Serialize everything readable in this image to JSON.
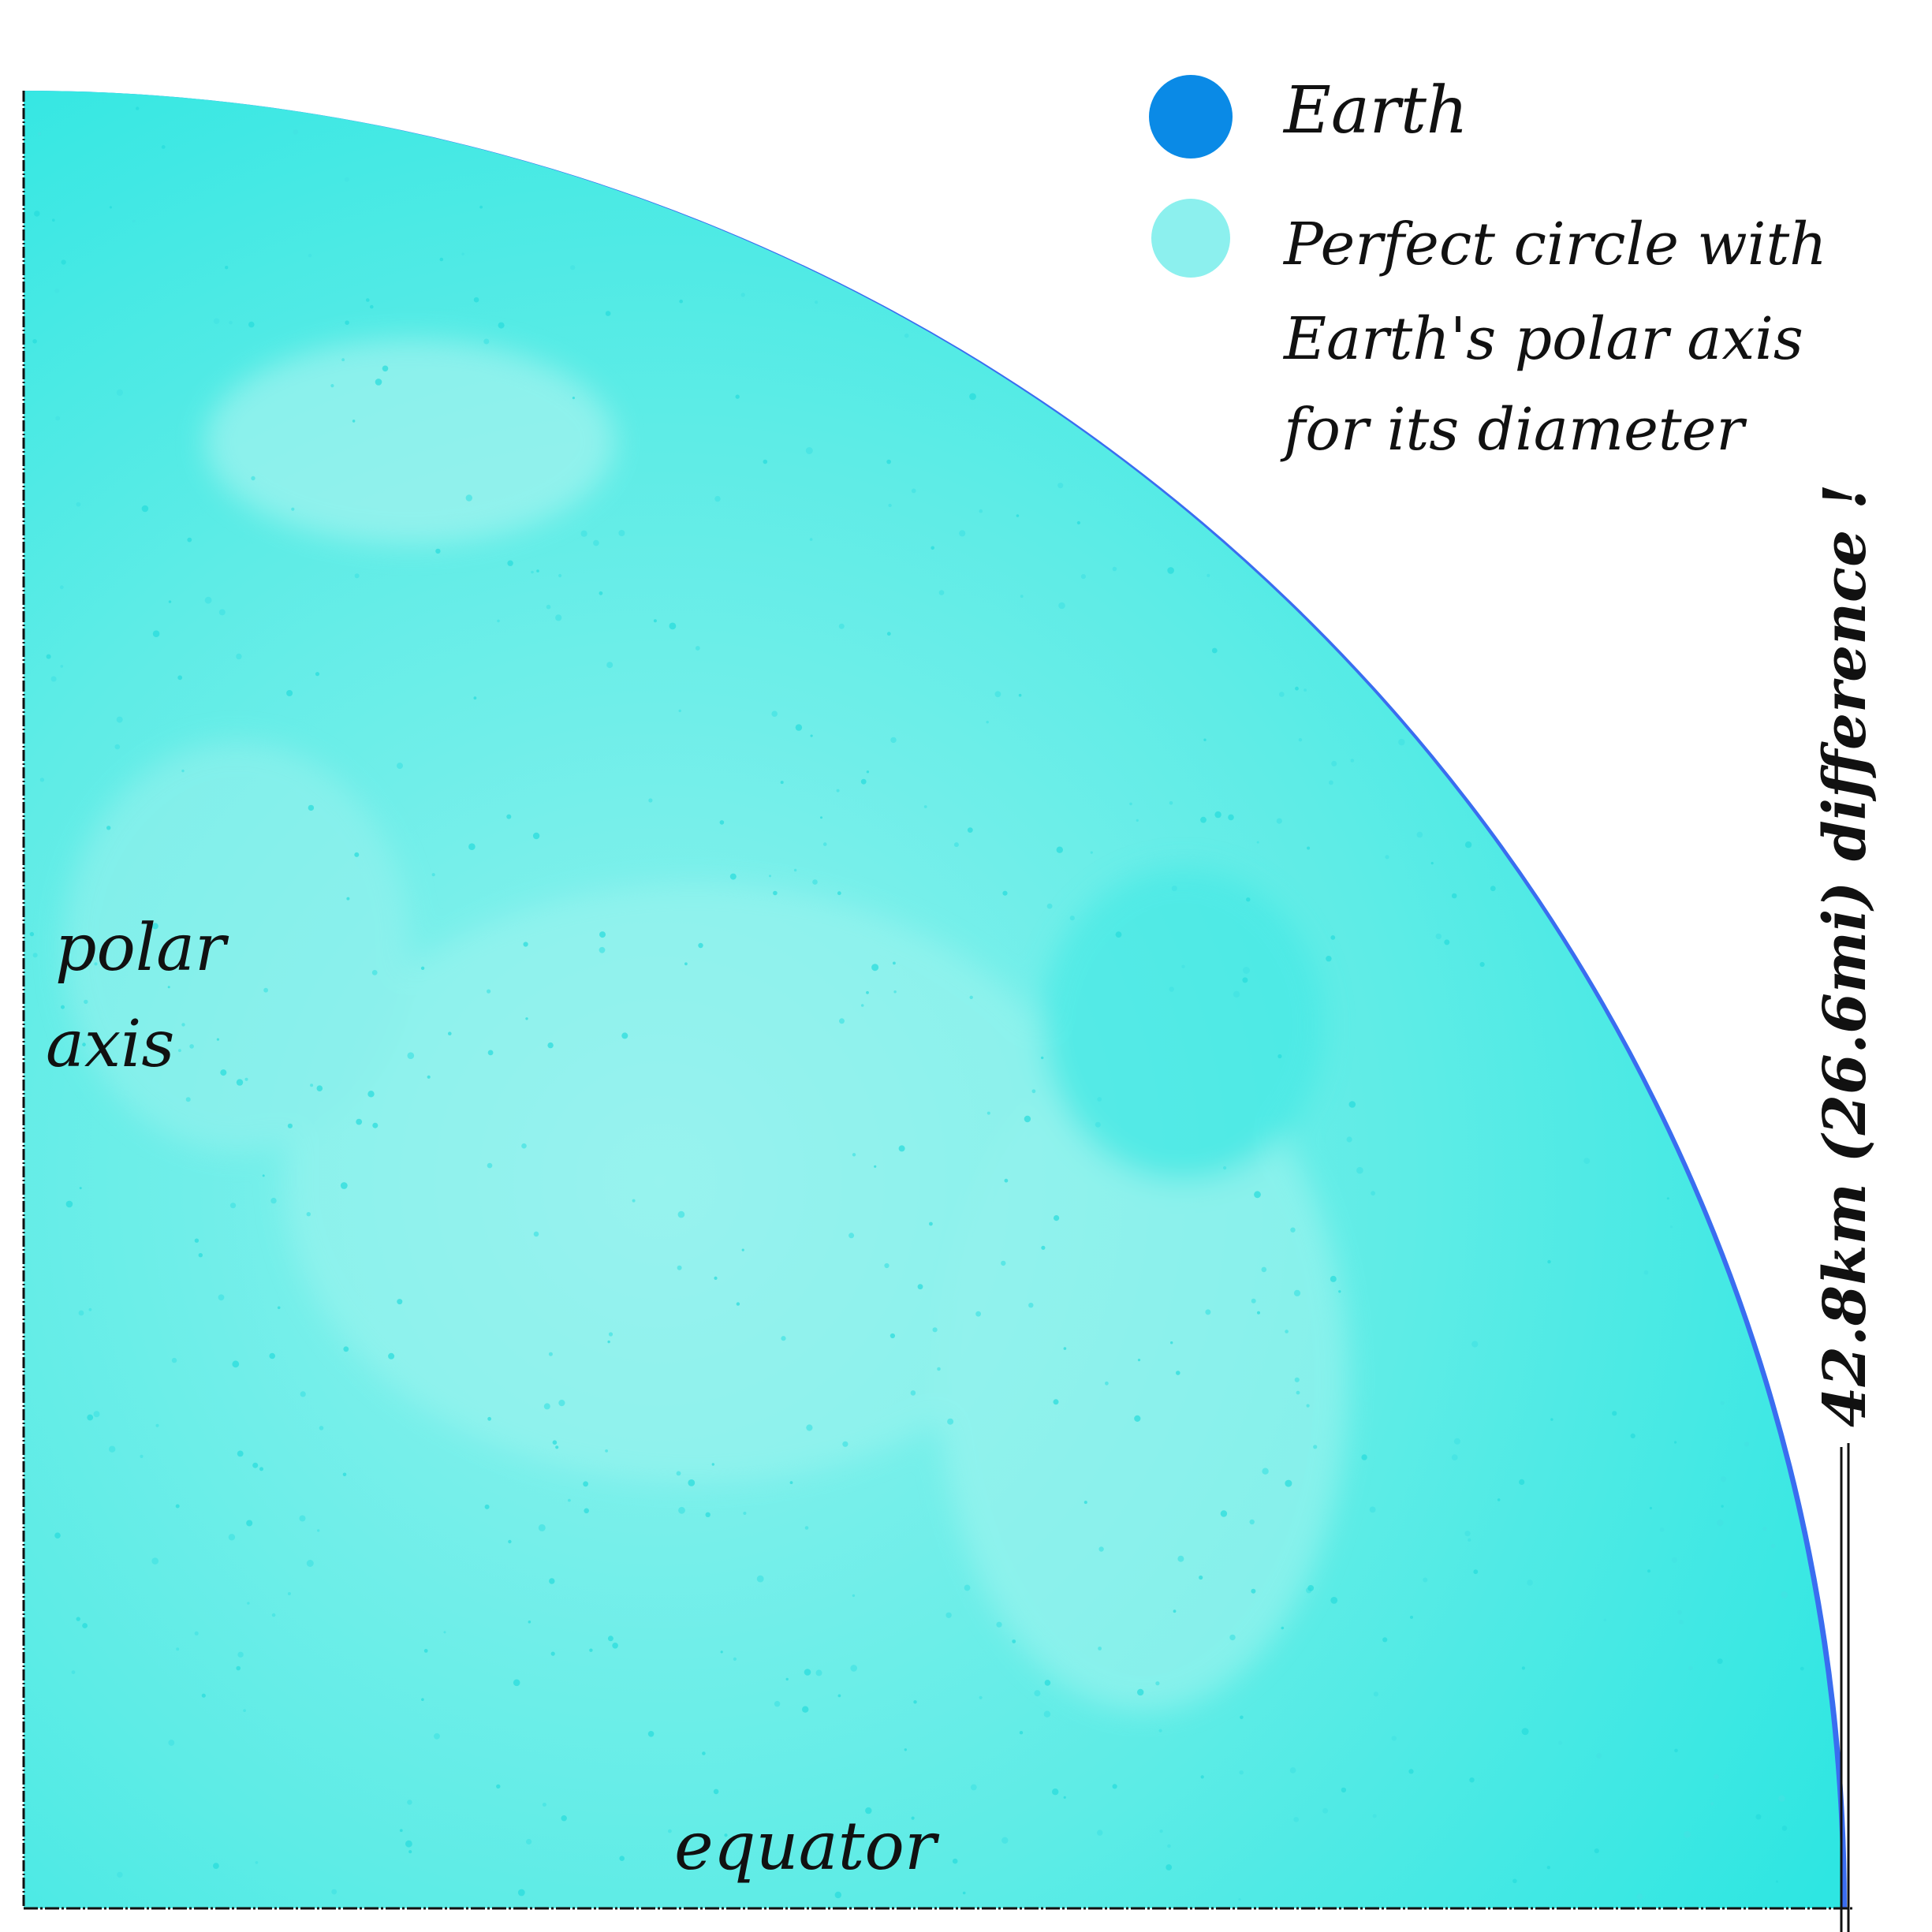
{
  "legend": {
    "items": [
      {
        "label": "Earth",
        "color": "#0a8ae6"
      },
      {
        "label_lines": [
          "Perfect circle with",
          "Earth's polar axis",
          "for its diameter"
        ],
        "color": "#3ee6e6"
      }
    ]
  },
  "labels": {
    "polar_axis": [
      "polar",
      "axis"
    ],
    "equator": "equator",
    "difference": "42.8km (26.6mi) difference !"
  },
  "colors": {
    "circle_fill": "#2ee6e2",
    "circle_fill_light": "#7ef0ec",
    "earth_edge": "#3a6df0",
    "ink": "#111111"
  }
}
